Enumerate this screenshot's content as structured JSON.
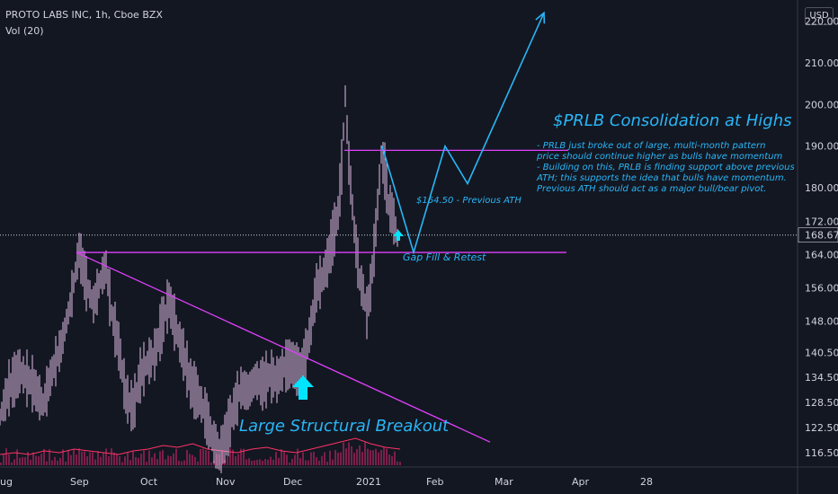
{
  "header": {
    "symbol_line": "PROTO LABS INC, 1h, Cboe BZX",
    "volume_label": "Vol (20)",
    "currency_button": "USD"
  },
  "price_scale": {
    "ticks": [
      "220.00",
      "210.00",
      "200.00",
      "190.00",
      "180.00",
      "172.00",
      "164.00",
      "156.00",
      "148.00",
      "140.50",
      "134.50",
      "128.50",
      "122.50",
      "116.50"
    ],
    "last_price_label": "168.67"
  },
  "time_axis": {
    "labels": [
      "ug",
      "Sep",
      "Oct",
      "Nov",
      "Dec",
      "2021",
      "Feb",
      "Mar",
      "Apr",
      "28"
    ]
  },
  "annotations": {
    "title": "$PRLB Consolidation at Highs",
    "notes": [
      "- PRLB just broke out of large, multi-month pattern",
      "price should continue higher as bulls have momentum",
      "- Building on this, PRLB is finding support above previous",
      "ATH; this supports the idea that bulls have momentum.",
      "Previous ATH should act as a major bull/bear pivot."
    ],
    "previous_ath": "$164.50 - Previous ATH",
    "gap_fill": "Gap Fill & Retest",
    "breakout": "Large Structural Breakout"
  },
  "colors": {
    "background": "#131722",
    "annotation": "#29b6f6",
    "trendline": "#e040fb",
    "candles": "#e1bee7",
    "volume": "#7b1f4a",
    "volume_ma": "#ff3366",
    "arrow": "#00e5ff"
  },
  "chart_data": {
    "type": "line",
    "title": "PROTO LABS INC, 1h, Cboe BZX",
    "xlabel": "",
    "ylabel": "",
    "x": [
      "Aug",
      "Sep",
      "Oct",
      "Nov",
      "Dec",
      "2021",
      "Feb",
      "Mar",
      "Apr",
      "28"
    ],
    "ylim": [
      113,
      224
    ],
    "y_ticks": [
      220.0,
      210.0,
      200.0,
      190.0,
      180.0,
      172.0,
      164.0,
      156.0,
      148.0,
      140.5,
      134.5,
      128.5,
      122.5,
      116.5
    ],
    "last_price": 168.67,
    "price_path": [
      [
        0,
        125
      ],
      [
        10,
        132
      ],
      [
        22,
        136
      ],
      [
        36,
        133
      ],
      [
        48,
        128
      ],
      [
        58,
        136
      ],
      [
        68,
        142
      ],
      [
        78,
        152
      ],
      [
        88,
        165
      ],
      [
        96,
        157
      ],
      [
        104,
        152
      ],
      [
        112,
        158
      ],
      [
        118,
        161
      ],
      [
        124,
        150
      ],
      [
        132,
        142
      ],
      [
        140,
        130
      ],
      [
        148,
        127
      ],
      [
        156,
        135
      ],
      [
        164,
        138
      ],
      [
        172,
        140
      ],
      [
        180,
        147
      ],
      [
        188,
        153
      ],
      [
        196,
        146
      ],
      [
        204,
        140
      ],
      [
        212,
        133
      ],
      [
        220,
        130
      ],
      [
        228,
        126
      ],
      [
        236,
        120
      ],
      [
        244,
        116
      ],
      [
        252,
        121
      ],
      [
        260,
        127
      ],
      [
        268,
        132
      ],
      [
        276,
        131
      ],
      [
        284,
        134
      ],
      [
        292,
        133
      ],
      [
        300,
        135
      ],
      [
        308,
        134
      ],
      [
        316,
        137
      ],
      [
        324,
        138
      ],
      [
        332,
        136
      ],
      [
        340,
        140
      ],
      [
        346,
        147
      ],
      [
        352,
        156
      ],
      [
        358,
        158
      ],
      [
        364,
        162
      ],
      [
        370,
        168
      ],
      [
        376,
        174
      ],
      [
        380,
        185
      ],
      [
        384,
        202
      ],
      [
        388,
        186
      ],
      [
        394,
        170
      ],
      [
        400,
        158
      ],
      [
        404,
        155
      ],
      [
        408,
        150
      ],
      [
        412,
        156
      ],
      [
        416,
        165
      ],
      [
        420,
        176
      ],
      [
        424,
        188
      ],
      [
        428,
        184
      ],
      [
        432,
        176
      ],
      [
        436,
        174
      ],
      [
        440,
        170
      ],
      [
        444,
        166
      ]
    ],
    "series": [
      {
        "name": "",
        "type": "projection",
        "points": [
          [
            425,
            190
          ],
          [
            460,
            164.5
          ],
          [
            495,
            190
          ],
          [
            520,
            181
          ],
          [
            605,
            222
          ]
        ]
      }
    ],
    "levels": [
      {
        "label": "$164.50 - Previous ATH",
        "value": 164.5
      },
      {
        "label": "",
        "value": 189
      }
    ],
    "trendline": [
      [
        85,
        164.5
      ],
      [
        545,
        119
      ]
    ],
    "volume_ma": [
      3,
      4,
      3,
      5,
      4,
      6,
      5,
      4,
      3,
      5,
      6,
      8,
      7,
      9,
      6,
      5,
      4,
      6,
      7,
      5,
      4,
      6,
      8,
      10,
      12,
      9,
      7,
      6
    ]
  }
}
